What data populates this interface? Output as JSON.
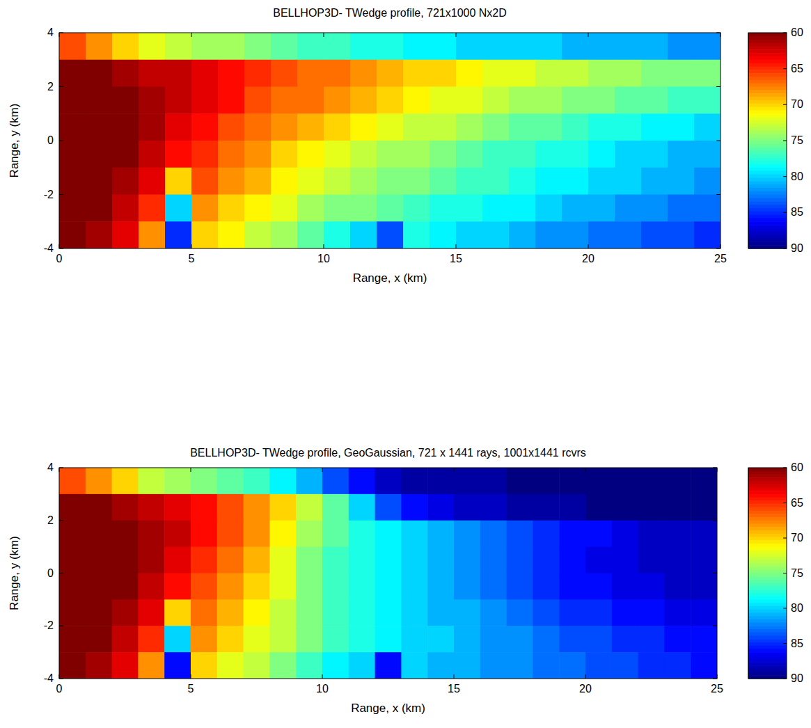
{
  "chart_data": [
    {
      "type": "heatmap",
      "title": "BELLHOP3D- TWedge profile, 721x1000 Nx2D",
      "x_label": "Range, x (km)",
      "y_label": "Range, y (km)",
      "xlim": [
        0,
        25
      ],
      "ylim": [
        -4,
        4
      ],
      "xticks": [
        0,
        5,
        10,
        15,
        20,
        25
      ],
      "yticks": [
        -4,
        -2,
        0,
        2,
        4
      ],
      "x": [
        0.5,
        1.5,
        2.5,
        3.5,
        4.5,
        5.5,
        6.5,
        7.5,
        8.5,
        9.5,
        10.5,
        11.5,
        12.5,
        13.5,
        14.5,
        15.5,
        16.5,
        17.5,
        18.5,
        19.5,
        20.5,
        21.5,
        22.5,
        23.5,
        24.5
      ],
      "y": [
        3.5,
        2.5,
        1.5,
        0.5,
        -0.5,
        -1.5,
        -2.5,
        -3.5
      ],
      "values": [
        [
          66,
          68,
          70,
          72,
          73,
          74,
          74,
          75,
          76,
          77,
          77,
          78,
          78,
          79,
          79,
          80,
          80,
          80,
          80,
          81,
          81,
          81,
          81,
          82,
          82
        ],
        [
          60,
          60,
          61,
          62,
          62,
          63,
          64,
          65,
          66,
          67,
          67,
          68,
          69,
          70,
          70,
          71,
          72,
          72,
          73,
          73,
          74,
          74,
          75,
          75,
          75
        ],
        [
          60,
          60,
          60,
          61,
          62,
          63,
          64,
          66,
          67,
          67,
          68,
          69,
          70,
          71,
          72,
          72,
          73,
          74,
          74,
          75,
          75,
          76,
          76,
          77,
          77
        ],
        [
          60,
          60,
          60,
          61,
          63,
          64,
          66,
          67,
          68,
          69,
          70,
          71,
          72,
          73,
          73,
          74,
          75,
          76,
          76,
          77,
          78,
          78,
          79,
          79,
          80
        ],
        [
          60,
          60,
          60,
          62,
          64,
          65,
          67,
          68,
          70,
          71,
          72,
          73,
          74,
          74,
          75,
          76,
          77,
          77,
          78,
          78,
          79,
          80,
          80,
          81,
          81
        ],
        [
          60,
          60,
          61,
          63,
          70,
          66,
          68,
          69,
          71,
          72,
          73,
          74,
          75,
          75,
          76,
          77,
          77,
          78,
          79,
          79,
          80,
          80,
          81,
          81,
          82
        ],
        [
          60,
          60,
          62,
          65,
          80,
          68,
          70,
          71,
          72,
          74,
          75,
          75,
          76,
          77,
          78,
          78,
          79,
          79,
          80,
          81,
          81,
          82,
          82,
          83,
          83
        ],
        [
          60,
          61,
          63,
          68,
          85,
          70,
          71,
          73,
          74,
          76,
          78,
          80,
          84,
          78,
          79,
          80,
          80,
          81,
          82,
          82,
          83,
          83,
          84,
          84,
          85
        ]
      ],
      "color_range": [
        60,
        90
      ],
      "color_ticks": [
        60,
        65,
        70,
        75,
        80,
        85,
        90
      ]
    },
    {
      "type": "heatmap",
      "title": "BELLHOP3D- TWedge profile, GeoGaussian, 721 x 1441 rays, 1001x1441 rcvrs",
      "x_label": "Range, x (km)",
      "y_label": "Range, y (km)",
      "xlim": [
        0,
        25
      ],
      "ylim": [
        -4,
        4
      ],
      "xticks": [
        0,
        5,
        10,
        15,
        20,
        25
      ],
      "yticks": [
        -4,
        -2,
        0,
        2,
        4
      ],
      "x": [
        0.5,
        1.5,
        2.5,
        3.5,
        4.5,
        5.5,
        6.5,
        7.5,
        8.5,
        9.5,
        10.5,
        11.5,
        12.5,
        13.5,
        14.5,
        15.5,
        16.5,
        17.5,
        18.5,
        19.5,
        20.5,
        21.5,
        22.5,
        23.5,
        24.5
      ],
      "y": [
        3.5,
        2.5,
        1.5,
        0.5,
        -0.5,
        -1.5,
        -2.5,
        -3.5
      ],
      "values": [
        [
          66,
          68,
          70,
          73,
          74,
          75,
          76,
          77,
          79,
          81,
          84,
          86,
          88,
          89,
          89,
          89,
          89,
          90,
          90,
          90,
          90,
          90,
          90,
          90,
          90
        ],
        [
          60,
          60,
          61,
          62,
          63,
          64,
          66,
          68,
          70,
          73,
          76,
          80,
          84,
          86,
          87,
          88,
          88,
          89,
          89,
          89,
          90,
          90,
          90,
          90,
          90
        ],
        [
          60,
          60,
          60,
          61,
          62,
          64,
          66,
          68,
          71,
          74,
          76,
          78,
          79,
          80,
          81,
          82,
          83,
          84,
          85,
          86,
          86,
          87,
          88,
          88,
          88
        ],
        [
          60,
          60,
          60,
          61,
          63,
          65,
          67,
          69,
          72,
          75,
          77,
          78,
          79,
          80,
          81,
          82,
          83,
          84,
          85,
          86,
          87,
          87,
          88,
          88,
          88
        ],
        [
          60,
          60,
          60,
          62,
          64,
          66,
          68,
          70,
          72,
          75,
          77,
          78,
          79,
          80,
          81,
          82,
          83,
          84,
          85,
          86,
          86,
          87,
          87,
          88,
          88
        ],
        [
          60,
          60,
          61,
          63,
          70,
          67,
          69,
          71,
          73,
          75,
          77,
          78,
          79,
          80,
          81,
          81,
          82,
          83,
          84,
          85,
          85,
          86,
          86,
          87,
          87
        ],
        [
          60,
          60,
          62,
          65,
          80,
          68,
          70,
          72,
          73,
          75,
          77,
          78,
          79,
          80,
          80,
          81,
          82,
          82,
          83,
          84,
          84,
          85,
          85,
          86,
          86
        ],
        [
          60,
          61,
          63,
          68,
          86,
          70,
          72,
          73,
          75,
          77,
          79,
          80,
          86,
          80,
          81,
          81,
          82,
          82,
          83,
          83,
          84,
          84,
          85,
          85,
          86
        ]
      ],
      "color_range": [
        60,
        90
      ],
      "color_ticks": [
        60,
        65,
        70,
        75,
        80,
        85,
        90
      ]
    }
  ]
}
